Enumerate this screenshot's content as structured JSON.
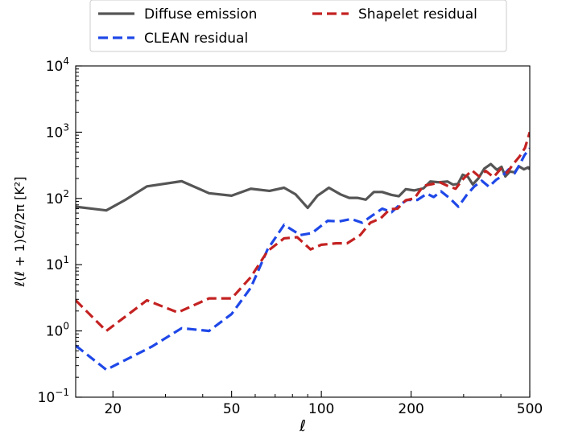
{
  "chart_data": {
    "type": "line",
    "xscale": "log",
    "yscale": "log",
    "xlim": [
      15,
      500
    ],
    "ylim": [
      0.1,
      10000
    ],
    "xlabel": "ℓ",
    "ylabel": "ℓ(ℓ + 1)Cℓ/2π [K²]",
    "x_ticks": [
      20,
      50,
      100,
      200,
      500
    ],
    "x_tick_labels": [
      "20",
      "50",
      "100",
      "200",
      "500"
    ],
    "y_ticks": [
      {
        "value": 0.1,
        "base": "10",
        "exp": "−1"
      },
      {
        "value": 1,
        "base": "10",
        "exp": "0"
      },
      {
        "value": 10,
        "base": "10",
        "exp": "1"
      },
      {
        "value": 100,
        "base": "10",
        "exp": "2"
      },
      {
        "value": 1000,
        "base": "10",
        "exp": "3"
      },
      {
        "value": 10000,
        "base": "10",
        "exp": "4"
      }
    ],
    "grid": false,
    "legend_position": "top, above plot",
    "series": [
      {
        "name": "Diffuse emission",
        "color": "#555555",
        "style": "solid",
        "points": [
          [
            15,
            75
          ],
          [
            19,
            66
          ],
          [
            22,
            95
          ],
          [
            26,
            152
          ],
          [
            34,
            182
          ],
          [
            42,
            120
          ],
          [
            50,
            110
          ],
          [
            58,
            140
          ],
          [
            67,
            130
          ],
          [
            75,
            145
          ],
          [
            82,
            115
          ],
          [
            90,
            72
          ],
          [
            97,
            110
          ],
          [
            106,
            145
          ],
          [
            116,
            115
          ],
          [
            124,
            102
          ],
          [
            132,
            102
          ],
          [
            141,
            96
          ],
          [
            150,
            125
          ],
          [
            160,
            125
          ],
          [
            172,
            113
          ],
          [
            182,
            108
          ],
          [
            192,
            138
          ],
          [
            205,
            132
          ],
          [
            220,
            142
          ],
          [
            232,
            180
          ],
          [
            248,
            175
          ],
          [
            265,
            180
          ],
          [
            276,
            162
          ],
          [
            287,
            165
          ],
          [
            298,
            228
          ],
          [
            310,
            212
          ],
          [
            322,
            163
          ],
          [
            336,
            200
          ],
          [
            352,
            282
          ],
          [
            370,
            330
          ],
          [
            388,
            270
          ],
          [
            402,
            300
          ],
          [
            414,
            215
          ],
          [
            429,
            255
          ],
          [
            445,
            248
          ],
          [
            460,
            305
          ],
          [
            478,
            275
          ],
          [
            494,
            295
          ],
          [
            500,
            275
          ]
        ]
      },
      {
        "name": "CLEAN residual",
        "color": "#1f48e8",
        "style": "dashed",
        "points": [
          [
            15,
            0.6
          ],
          [
            19,
            0.26
          ],
          [
            27,
            0.58
          ],
          [
            34,
            1.1
          ],
          [
            42,
            1.0
          ],
          [
            50,
            1.8
          ],
          [
            58,
            4.5
          ],
          [
            66,
            17
          ],
          [
            75,
            40
          ],
          [
            85,
            28
          ],
          [
            93,
            30
          ],
          [
            105,
            46
          ],
          [
            115,
            45
          ],
          [
            126,
            49
          ],
          [
            137,
            43
          ],
          [
            148,
            55
          ],
          [
            160,
            70
          ],
          [
            172,
            62
          ],
          [
            183,
            80
          ],
          [
            194,
            95
          ],
          [
            210,
            95
          ],
          [
            226,
            118
          ],
          [
            238,
            105
          ],
          [
            252,
            128
          ],
          [
            270,
            100
          ],
          [
            288,
            75
          ],
          [
            307,
            112
          ],
          [
            325,
            150
          ],
          [
            345,
            185
          ],
          [
            365,
            150
          ],
          [
            385,
            190
          ],
          [
            405,
            220
          ],
          [
            425,
            275
          ],
          [
            445,
            240
          ],
          [
            465,
            340
          ],
          [
            480,
            450
          ],
          [
            500,
            570
          ]
        ]
      },
      {
        "name": "Shapelet residual",
        "color": "#c42222",
        "style": "dashed",
        "points": [
          [
            15,
            2.9
          ],
          [
            19,
            1.0
          ],
          [
            26,
            2.9
          ],
          [
            33,
            1.9
          ],
          [
            42,
            3.1
          ],
          [
            50,
            3.1
          ],
          [
            58,
            6.5
          ],
          [
            66,
            16
          ],
          [
            75,
            25
          ],
          [
            83,
            26
          ],
          [
            92,
            17
          ],
          [
            100,
            20
          ],
          [
            112,
            21
          ],
          [
            122,
            21
          ],
          [
            135,
            28
          ],
          [
            146,
            43
          ],
          [
            158,
            50
          ],
          [
            170,
            69
          ],
          [
            180,
            70
          ],
          [
            192,
            94
          ],
          [
            205,
            100
          ],
          [
            220,
            155
          ],
          [
            236,
            165
          ],
          [
            250,
            175
          ],
          [
            265,
            155
          ],
          [
            282,
            140
          ],
          [
            300,
            200
          ],
          [
            320,
            265
          ],
          [
            338,
            215
          ],
          [
            356,
            260
          ],
          [
            378,
            210
          ],
          [
            400,
            280
          ],
          [
            420,
            245
          ],
          [
            440,
            330
          ],
          [
            462,
            430
          ],
          [
            482,
            580
          ],
          [
            500,
            1000
          ]
        ]
      }
    ]
  }
}
